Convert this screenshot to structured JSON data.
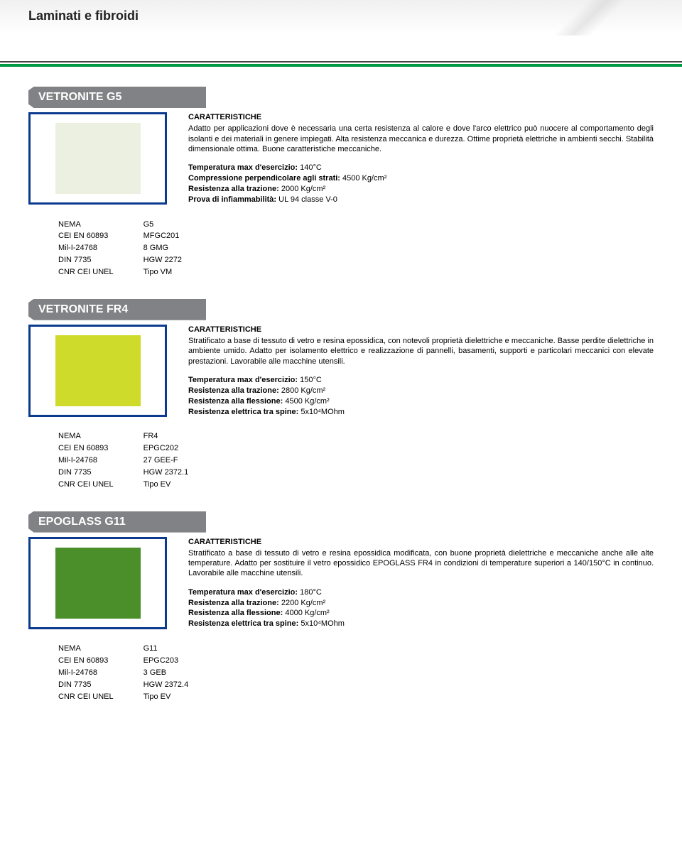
{
  "page_title": "Laminati e fibroidi",
  "colors": {
    "title_bar_bg": "#808285",
    "title_bar_fg": "#ffffff",
    "thumb_border": "#0b3a8f",
    "header_line_dark": "#444444",
    "header_line_green": "#009944"
  },
  "products": [
    {
      "title": "VETRONITE G5",
      "swatch_color": "#ecf0e0",
      "char_heading": "CARATTERISTICHE",
      "char_text": "Adatto per applicazioni dove è necessaria una certa resistenza al calore e dove l'arco elettrico può nuocere al comportamento degli isolanti e dei materiali in genere impiegati. Alta resistenza meccanica e durezza. Ottime proprietà elettriche in ambienti secchi. Stabilità dimensionale ottima. Buone caratteristiche meccaniche.",
      "specs": [
        {
          "label": "Temperatura max d'esercizio:",
          "value": " 140°C"
        },
        {
          "label": "Compressione perpendicolare agli strati:",
          "value": " 4500 Kg/cm²"
        },
        {
          "label": "Resistenza alla trazione:",
          "value": " 2000 Kg/cm²"
        },
        {
          "label": "Prova di infiammabilità:",
          "value": " UL 94 classe V-0"
        }
      ],
      "standards": [
        {
          "std": "NEMA",
          "val": "G5"
        },
        {
          "std": "CEI EN 60893",
          "val": "MFGC201"
        },
        {
          "std": "Mil-I-24768",
          "val": "8 GMG"
        },
        {
          "std": "DIN 7735",
          "val": "HGW 2272"
        },
        {
          "std": "CNR CEI UNEL",
          "val": "Tipo VM"
        }
      ]
    },
    {
      "title": "VETRONITE FR4",
      "swatch_color": "#cedb2a",
      "char_heading": "CARATTERISTICHE",
      "char_text": "Stratificato a base di tessuto di vetro e resina epossidica, con notevoli proprietà dielettriche e meccaniche. Basse perdite dielettriche in ambiente umido. Adatto per isolamento elettrico e realizzazione di pannelli, basamenti, supporti e particolari meccanici con elevate prestazioni. Lavorabile alle macchine utensili.",
      "specs": [
        {
          "label": "Temperatura max d'esercizio:",
          "value": " 150°C"
        },
        {
          "label": "Resistenza alla trazione:",
          "value": " 2800 Kg/cm²"
        },
        {
          "label": "Resistenza alla flessione:",
          "value": " 4500 Kg/cm²"
        },
        {
          "label": "Resistenza elettrica tra spine:",
          "value": " 5x10⁴MOhm"
        }
      ],
      "standards": [
        {
          "std": "NEMA",
          "val": "FR4"
        },
        {
          "std": "CEI EN 60893",
          "val": "EPGC202"
        },
        {
          "std": "Mil-I-24768",
          "val": "27 GEE-F"
        },
        {
          "std": "DIN 7735",
          "val": "HGW 2372.1"
        },
        {
          "std": "CNR CEI UNEL",
          "val": "Tipo EV"
        }
      ]
    },
    {
      "title": "EPOGLASS G11",
      "swatch_color": "#4a8f2a",
      "char_heading": "CARATTERISTICHE",
      "char_text": "Stratificato a base di tessuto di vetro e resina epossidica modificata, con buone proprietà dielettriche e meccaniche anche alle alte temperature. Adatto per sostituire il vetro epossidico EPOGLASS FR4 in condizioni di temperature superiori a 140/150°C in continuo. Lavorabile alle macchine utensili.",
      "specs": [
        {
          "label": "Temperatura max d'esercizio:",
          "value": " 180°C"
        },
        {
          "label": "Resistenza alla trazione:",
          "value": " 2200 Kg/cm²"
        },
        {
          "label": "Resistenza alla flessione:",
          "value": " 4000 Kg/cm²"
        },
        {
          "label": "Resistenza elettrica tra spine:",
          "value": " 5x10⁴MOhm"
        }
      ],
      "standards": [
        {
          "std": "NEMA",
          "val": "G11"
        },
        {
          "std": "CEI EN 60893",
          "val": "EPGC203"
        },
        {
          "std": "Mil-I-24768",
          "val": "3 GEB"
        },
        {
          "std": "DIN 7735",
          "val": "HGW 2372.4"
        },
        {
          "std": "CNR CEI UNEL",
          "val": "Tipo EV"
        }
      ]
    }
  ]
}
